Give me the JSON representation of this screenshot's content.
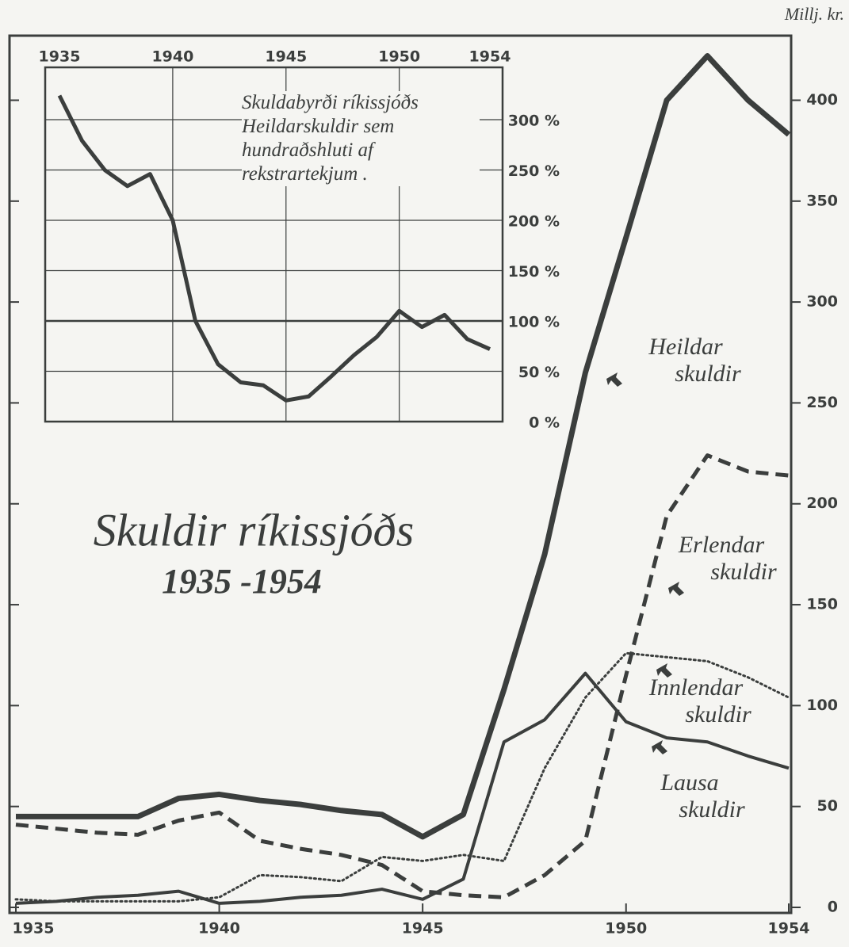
{
  "chart_data": [
    {
      "type": "line",
      "title": "Skuldir ríkissjóðs",
      "subtitle": "1935 -1954",
      "y_label": "Millj. kr.",
      "x": [
        1935,
        1936,
        1937,
        1938,
        1939,
        1940,
        1941,
        1942,
        1943,
        1944,
        1945,
        1946,
        1947,
        1948,
        1949,
        1950,
        1951,
        1952,
        1953,
        1954
      ],
      "xlim": [
        1935,
        1954
      ],
      "xticks": [
        1935,
        1940,
        1945,
        1950,
        1954
      ],
      "ylim": [
        0,
        432
      ],
      "yticks": [
        0,
        50,
        100,
        150,
        200,
        250,
        300,
        350,
        400
      ],
      "series": [
        {
          "name": "Heildar skuldir",
          "color": "#3b3e3d",
          "style": "thick",
          "values": [
            45,
            45,
            45,
            45,
            54,
            56,
            53,
            51,
            48,
            46,
            35,
            46,
            108,
            175,
            265,
            332,
            400,
            422,
            400,
            383
          ]
        },
        {
          "name": "Erlendar skuldir",
          "color": "#3b3e3d",
          "style": "dashed",
          "values": [
            41,
            39,
            37,
            36,
            43,
            47,
            33,
            29,
            26,
            21,
            8,
            6,
            5,
            16,
            33,
            115,
            194,
            224,
            216,
            214
          ]
        },
        {
          "name": "Innlendar skuldir",
          "color": "#3b3e3d",
          "style": "dotted",
          "values": [
            4,
            3,
            3,
            3,
            3,
            5,
            16,
            15,
            13,
            25,
            23,
            26,
            23,
            69,
            104,
            126,
            124,
            122,
            114,
            104
          ]
        },
        {
          "name": "Lausa skuldir",
          "color": "#3b3e3d",
          "style": "solid",
          "values": [
            2,
            3,
            5,
            6,
            8,
            2,
            3,
            5,
            6,
            9,
            4,
            14,
            82,
            93,
            116,
            92,
            84,
            82,
            75,
            69
          ]
        }
      ]
    },
    {
      "type": "line",
      "title": "Skuldabyrði ríkissjóðs Heildarskuldir sem hundraðshluti af rekstrartekjum .",
      "x": [
        1935,
        1936,
        1937,
        1938,
        1939,
        1940,
        1941,
        1942,
        1943,
        1944,
        1945,
        1946,
        1947,
        1948,
        1949,
        1950,
        1951,
        1952,
        1953,
        1954
      ],
      "xlim": [
        1935,
        1954
      ],
      "xticks": [
        1935,
        1940,
        1945,
        1950,
        1954
      ],
      "ylim": [
        0,
        352
      ],
      "yticks": [
        {
          "value": 0,
          "label": "0 %"
        },
        {
          "value": 50,
          "label": "50 %"
        },
        {
          "value": 100,
          "label": "100 %"
        },
        {
          "value": 150,
          "label": "150 %"
        },
        {
          "value": 200,
          "label": "200 %"
        },
        {
          "value": 250,
          "label": "250 %"
        },
        {
          "value": 300,
          "label": "300 %"
        }
      ],
      "grid": true,
      "series": [
        {
          "name": "Skuldabyrði",
          "color": "#3b3e3d",
          "values": [
            324,
            279,
            250,
            234,
            246,
            200,
            100,
            57,
            39,
            36,
            21,
            25,
            45,
            66,
            84,
            110,
            94,
            106,
            82,
            72
          ]
        }
      ]
    }
  ]
}
